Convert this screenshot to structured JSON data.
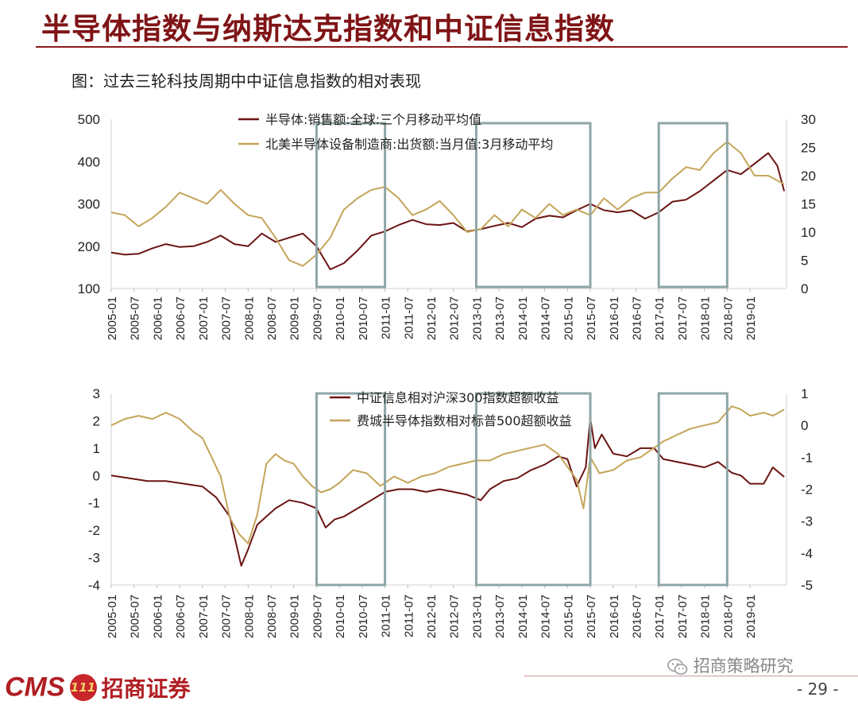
{
  "page": {
    "title": "半导体指数与纳斯达克指数和中证信息指数",
    "caption": "图：过去三轮科技周期中中证信息指数的相对表现",
    "logo_text": "CMS",
    "logo_badge": "111",
    "broker_name": "招商证券",
    "wechat_account": "招商策略研究",
    "page_number": "- 29 -"
  },
  "colors": {
    "series_dark": "#6b1414",
    "series_gold": "#c4a55a",
    "highlight_box": "#8fa6a6",
    "title": "#7f1416"
  },
  "chart_data": [
    {
      "type": "line",
      "x_tick_labels": [
        "2005-01",
        "2005-07",
        "2006-01",
        "2006-07",
        "2007-01",
        "2007-07",
        "2008-01",
        "2008-07",
        "2009-01",
        "2009-07",
        "2010-01",
        "2010-07",
        "2011-01",
        "2011-07",
        "2012-01",
        "2012-07",
        "2013-01",
        "2013-07",
        "2014-01",
        "2014-07",
        "2015-01",
        "2015-07",
        "2016-01",
        "2016-07",
        "2017-01",
        "2017-07",
        "2018-01",
        "2018-07",
        "2019-01"
      ],
      "y_left": {
        "range": [
          100,
          500
        ],
        "ticks": [
          "500",
          "400",
          "300",
          "200",
          "100"
        ]
      },
      "y_right": {
        "range": [
          0,
          30
        ],
        "ticks": [
          "30",
          "25",
          "20",
          "15",
          "10",
          "5",
          "0"
        ]
      },
      "series": [
        {
          "name": "半导体:销售额:全球:三个月移动平均值",
          "axis": "left",
          "color": "#6b1414",
          "points": [
            [
              2005.0,
              185
            ],
            [
              2005.3,
              180
            ],
            [
              2005.6,
              182
            ],
            [
              2005.9,
              195
            ],
            [
              2006.2,
              205
            ],
            [
              2006.5,
              198
            ],
            [
              2006.8,
              200
            ],
            [
              2007.1,
              210
            ],
            [
              2007.4,
              225
            ],
            [
              2007.7,
              205
            ],
            [
              2008.0,
              200
            ],
            [
              2008.3,
              230
            ],
            [
              2008.6,
              210
            ],
            [
              2008.9,
              220
            ],
            [
              2009.2,
              230
            ],
            [
              2009.5,
              200
            ],
            [
              2009.8,
              145
            ],
            [
              2010.1,
              160
            ],
            [
              2010.4,
              190
            ],
            [
              2010.7,
              225
            ],
            [
              2011.0,
              235
            ],
            [
              2011.3,
              250
            ],
            [
              2011.6,
              262
            ],
            [
              2011.9,
              252
            ],
            [
              2012.2,
              250
            ],
            [
              2012.5,
              255
            ],
            [
              2012.8,
              235
            ],
            [
              2013.1,
              240
            ],
            [
              2013.4,
              248
            ],
            [
              2013.7,
              255
            ],
            [
              2014.0,
              245
            ],
            [
              2014.3,
              265
            ],
            [
              2014.6,
              272
            ],
            [
              2014.9,
              268
            ],
            [
              2015.2,
              285
            ],
            [
              2015.5,
              300
            ],
            [
              2015.8,
              285
            ],
            [
              2016.1,
              280
            ],
            [
              2016.4,
              285
            ],
            [
              2016.7,
              265
            ],
            [
              2017.0,
              280
            ],
            [
              2017.3,
              305
            ],
            [
              2017.6,
              310
            ],
            [
              2017.9,
              330
            ],
            [
              2018.2,
              355
            ],
            [
              2018.5,
              380
            ],
            [
              2018.8,
              370
            ],
            [
              2019.1,
              395
            ],
            [
              2019.4,
              420
            ],
            [
              2019.6,
              390
            ],
            [
              2019.75,
              330
            ]
          ]
        },
        {
          "name": "北美半导体设备制造商:出货额:当月值:3月移动平均",
          "axis": "right",
          "color": "#c4a55a",
          "points": [
            [
              2005.0,
              13.5
            ],
            [
              2005.3,
              13
            ],
            [
              2005.6,
              11
            ],
            [
              2005.9,
              12.5
            ],
            [
              2006.2,
              14.5
            ],
            [
              2006.5,
              17
            ],
            [
              2006.8,
              16
            ],
            [
              2007.1,
              15
            ],
            [
              2007.4,
              17.5
            ],
            [
              2007.7,
              15
            ],
            [
              2008.0,
              13
            ],
            [
              2008.3,
              12.5
            ],
            [
              2008.6,
              9
            ],
            [
              2008.9,
              5
            ],
            [
              2009.2,
              4
            ],
            [
              2009.5,
              6
            ],
            [
              2009.8,
              9
            ],
            [
              2010.1,
              14
            ],
            [
              2010.4,
              16
            ],
            [
              2010.7,
              17.5
            ],
            [
              2011.0,
              18
            ],
            [
              2011.3,
              16
            ],
            [
              2011.6,
              13
            ],
            [
              2011.9,
              14
            ],
            [
              2012.2,
              15.5
            ],
            [
              2012.5,
              13
            ],
            [
              2012.8,
              10
            ],
            [
              2013.1,
              10.5
            ],
            [
              2013.4,
              13
            ],
            [
              2013.7,
              11
            ],
            [
              2014.0,
              14
            ],
            [
              2014.3,
              12.5
            ],
            [
              2014.6,
              15
            ],
            [
              2014.9,
              13
            ],
            [
              2015.2,
              14
            ],
            [
              2015.5,
              13
            ],
            [
              2015.8,
              16
            ],
            [
              2016.1,
              14
            ],
            [
              2016.4,
              16
            ],
            [
              2016.7,
              17
            ],
            [
              2017.0,
              17
            ],
            [
              2017.3,
              19.5
            ],
            [
              2017.6,
              21.5
            ],
            [
              2017.9,
              21
            ],
            [
              2018.2,
              24
            ],
            [
              2018.5,
              26
            ],
            [
              2018.8,
              24
            ],
            [
              2019.1,
              20
            ],
            [
              2019.4,
              20
            ],
            [
              2019.75,
              18.5
            ]
          ]
        }
      ],
      "highlight_periods": [
        [
          "2009-07",
          "2011-01"
        ],
        [
          "2013-01",
          "2015-07"
        ],
        [
          "2017-01",
          "2018-07"
        ]
      ]
    },
    {
      "type": "line",
      "x_tick_labels": [
        "2005-01",
        "2005-07",
        "2006-01",
        "2006-07",
        "2007-01",
        "2007-07",
        "2008-01",
        "2008-07",
        "2009-01",
        "2009-07",
        "2010-01",
        "2010-07",
        "2011-01",
        "2011-07",
        "2012-01",
        "2012-07",
        "2013-01",
        "2013-07",
        "2014-01",
        "2014-07",
        "2015-01",
        "2015-07",
        "2016-01",
        "2016-07",
        "2017-01",
        "2017-07",
        "2018-01",
        "2018-07",
        "2019-01"
      ],
      "y_left": {
        "range": [
          -4,
          3
        ],
        "ticks": [
          "3",
          "2",
          "1",
          "0",
          "-1",
          "-2",
          "-3",
          "-4"
        ]
      },
      "y_right": {
        "range": [
          -5,
          1
        ],
        "ticks": [
          "1",
          "0",
          "-1",
          "-2",
          "-3",
          "-4",
          "-5"
        ]
      },
      "series": [
        {
          "name": "中证信息相对沪深300指数超额收益",
          "axis": "left",
          "color": "#6b1414",
          "points": [
            [
              2005.0,
              0
            ],
            [
              2005.4,
              -0.1
            ],
            [
              2005.8,
              -0.2
            ],
            [
              2006.2,
              -0.2
            ],
            [
              2006.6,
              -0.3
            ],
            [
              2007.0,
              -0.4
            ],
            [
              2007.3,
              -0.8
            ],
            [
              2007.6,
              -1.5
            ],
            [
              2007.85,
              -3.3
            ],
            [
              2008.0,
              -2.7
            ],
            [
              2008.2,
              -1.8
            ],
            [
              2008.4,
              -1.5
            ],
            [
              2008.6,
              -1.2
            ],
            [
              2008.9,
              -0.9
            ],
            [
              2009.2,
              -1.0
            ],
            [
              2009.5,
              -1.2
            ],
            [
              2009.7,
              -1.9
            ],
            [
              2009.9,
              -1.6
            ],
            [
              2010.1,
              -1.5
            ],
            [
              2010.4,
              -1.2
            ],
            [
              2010.7,
              -0.9
            ],
            [
              2011.0,
              -0.6
            ],
            [
              2011.3,
              -0.5
            ],
            [
              2011.6,
              -0.5
            ],
            [
              2011.9,
              -0.6
            ],
            [
              2012.2,
              -0.5
            ],
            [
              2012.5,
              -0.6
            ],
            [
              2012.8,
              -0.7
            ],
            [
              2013.1,
              -0.9
            ],
            [
              2013.3,
              -0.5
            ],
            [
              2013.6,
              -0.2
            ],
            [
              2013.9,
              -0.1
            ],
            [
              2014.2,
              0.2
            ],
            [
              2014.5,
              0.4
            ],
            [
              2014.8,
              0.7
            ],
            [
              2015.0,
              0.6
            ],
            [
              2015.2,
              -0.4
            ],
            [
              2015.4,
              0.3
            ],
            [
              2015.5,
              2.1
            ],
            [
              2015.6,
              1.0
            ],
            [
              2015.75,
              1.5
            ],
            [
              2016.0,
              0.8
            ],
            [
              2016.3,
              0.7
            ],
            [
              2016.6,
              1.0
            ],
            [
              2016.9,
              1.0
            ],
            [
              2017.1,
              0.6
            ],
            [
              2017.4,
              0.5
            ],
            [
              2017.7,
              0.4
            ],
            [
              2018.0,
              0.3
            ],
            [
              2018.3,
              0.5
            ],
            [
              2018.6,
              0.1
            ],
            [
              2018.8,
              0.0
            ],
            [
              2019.0,
              -0.3
            ],
            [
              2019.3,
              -0.3
            ],
            [
              2019.5,
              0.3
            ],
            [
              2019.75,
              -0.05
            ]
          ]
        },
        {
          "name": "费城半导体指数相对标普500超额收益",
          "axis": "right",
          "color": "#c4a55a",
          "points": [
            [
              2005.0,
              0.0
            ],
            [
              2005.3,
              0.2
            ],
            [
              2005.6,
              0.3
            ],
            [
              2005.9,
              0.2
            ],
            [
              2006.2,
              0.4
            ],
            [
              2006.5,
              0.2
            ],
            [
              2006.8,
              -0.2
            ],
            [
              2007.0,
              -0.4
            ],
            [
              2007.2,
              -1.0
            ],
            [
              2007.4,
              -1.6
            ],
            [
              2007.6,
              -2.9
            ],
            [
              2007.8,
              -3.4
            ],
            [
              2008.0,
              -3.7
            ],
            [
              2008.2,
              -2.8
            ],
            [
              2008.4,
              -1.2
            ],
            [
              2008.6,
              -0.9
            ],
            [
              2008.8,
              -1.1
            ],
            [
              2009.0,
              -1.2
            ],
            [
              2009.2,
              -1.6
            ],
            [
              2009.4,
              -1.9
            ],
            [
              2009.6,
              -2.1
            ],
            [
              2009.8,
              -2.0
            ],
            [
              2010.0,
              -1.8
            ],
            [
              2010.3,
              -1.4
            ],
            [
              2010.6,
              -1.5
            ],
            [
              2010.9,
              -1.9
            ],
            [
              2011.2,
              -1.6
            ],
            [
              2011.5,
              -1.8
            ],
            [
              2011.8,
              -1.6
            ],
            [
              2012.1,
              -1.5
            ],
            [
              2012.4,
              -1.3
            ],
            [
              2012.7,
              -1.2
            ],
            [
              2013.0,
              -1.1
            ],
            [
              2013.3,
              -1.1
            ],
            [
              2013.6,
              -0.9
            ],
            [
              2013.9,
              -0.8
            ],
            [
              2014.2,
              -0.7
            ],
            [
              2014.5,
              -0.6
            ],
            [
              2014.8,
              -0.9
            ],
            [
              2015.0,
              -1.3
            ],
            [
              2015.2,
              -1.7
            ],
            [
              2015.35,
              -2.6
            ],
            [
              2015.5,
              -1.0
            ],
            [
              2015.7,
              -1.5
            ],
            [
              2016.0,
              -1.4
            ],
            [
              2016.3,
              -1.1
            ],
            [
              2016.6,
              -1.0
            ],
            [
              2016.9,
              -0.7
            ],
            [
              2017.1,
              -0.5
            ],
            [
              2017.4,
              -0.3
            ],
            [
              2017.7,
              -0.1
            ],
            [
              2018.0,
              0.0
            ],
            [
              2018.3,
              0.1
            ],
            [
              2018.6,
              0.6
            ],
            [
              2018.8,
              0.5
            ],
            [
              2019.0,
              0.3
            ],
            [
              2019.3,
              0.4
            ],
            [
              2019.5,
              0.3
            ],
            [
              2019.75,
              0.5
            ]
          ]
        }
      ],
      "highlight_periods": [
        [
          "2009-07",
          "2011-01"
        ],
        [
          "2013-01",
          "2015-07"
        ],
        [
          "2017-01",
          "2018-07"
        ]
      ]
    }
  ]
}
